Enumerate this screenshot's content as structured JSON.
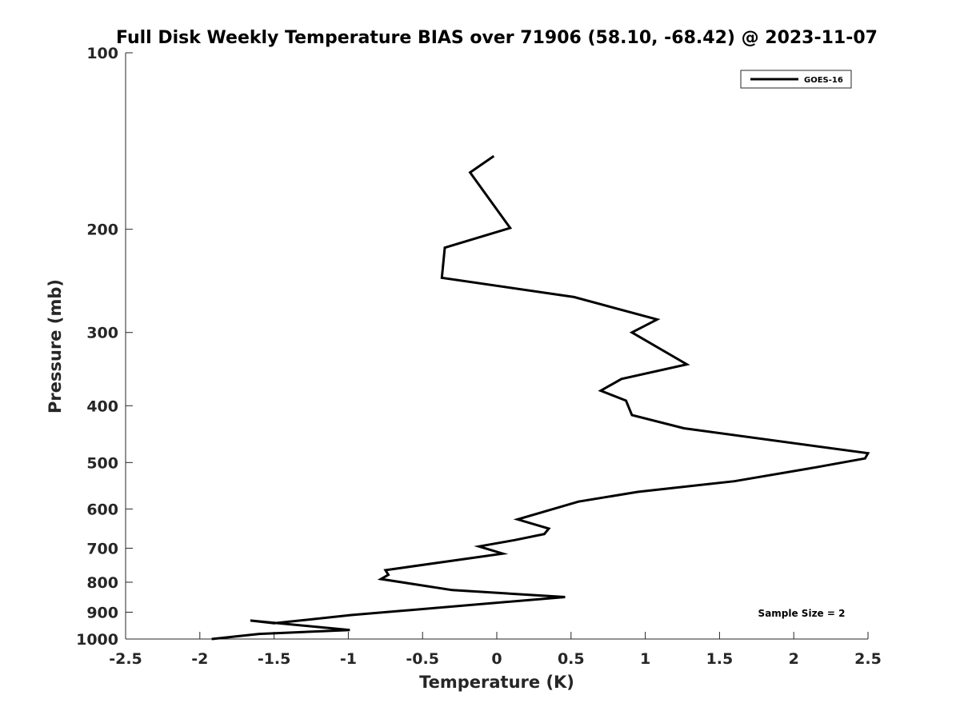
{
  "chart_data": {
    "type": "line",
    "title": "Full Disk Weekly Temperature BIAS over 71906 (58.10, -68.42) @ 2023-11-07",
    "xlabel": "Temperature (K)",
    "ylabel": "Pressure (mb)",
    "xlim": [
      -2.5,
      2.5
    ],
    "ylim": [
      100,
      1000
    ],
    "yscale": "log",
    "y_reversed": true,
    "grid": false,
    "legend_position": "top-right",
    "xticks": [
      -2.5,
      -2,
      -1.5,
      -1,
      -0.5,
      0,
      0.5,
      1,
      1.5,
      2,
      2.5
    ],
    "xtick_labels": [
      "-2.5",
      "-2",
      "-1.5",
      "-1",
      "-0.5",
      "0",
      "0.5",
      "1",
      "1.5",
      "2",
      "2.5"
    ],
    "yticks": [
      100,
      200,
      300,
      400,
      500,
      600,
      700,
      800,
      900,
      1000
    ],
    "ytick_labels": [
      "100",
      "200",
      "300",
      "400",
      "500",
      "600",
      "700",
      "800",
      "900",
      "1000"
    ],
    "series": [
      {
        "name": "GOES-16",
        "color": "#000000",
        "x": [
          -0.02,
          -0.18,
          0.09,
          -0.35,
          -0.37,
          0.52,
          1.08,
          0.91,
          1.28,
          0.84,
          0.7,
          0.87,
          0.91,
          1.26,
          2.5,
          2.48,
          2.1,
          1.6,
          0.95,
          0.55,
          0.14,
          0.35,
          0.32,
          0.12,
          -0.12,
          0.04,
          -0.75,
          -0.73,
          -0.78,
          -0.3,
          0.46,
          -0.98,
          -1.5,
          -1.66,
          -0.99,
          -1.6,
          -1.92
        ],
        "y": [
          150,
          160,
          199,
          215,
          242,
          261,
          285,
          300,
          340,
          360,
          377,
          392,
          415,
          437,
          482,
          492,
          512,
          538,
          561,
          583,
          625,
          648,
          662,
          678,
          695,
          715,
          763,
          777,
          790,
          825,
          848,
          910,
          940,
          930,
          965,
          980,
          1000
        ]
      }
    ],
    "annotations": [
      {
        "text": "Sample Size = 2",
        "position": "bottom-right"
      }
    ]
  }
}
